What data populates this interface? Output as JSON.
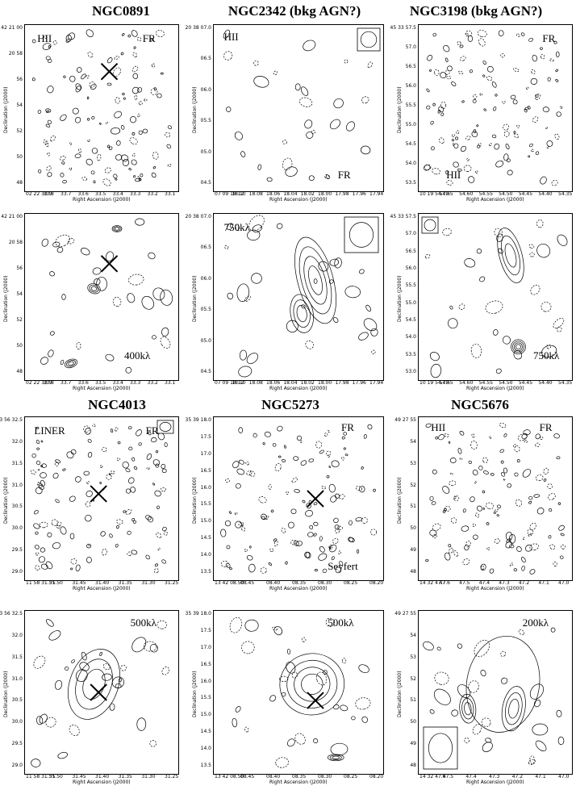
{
  "figure": {
    "titles": [
      {
        "id": "t1",
        "text": "NGC0891"
      },
      {
        "id": "t2",
        "text": "NGC2342 (bkg AGN?)"
      },
      {
        "id": "t3",
        "text": "NGC3198 (bkg AGN?)"
      },
      {
        "id": "t4",
        "text": "NGC4013"
      },
      {
        "id": "t5",
        "text": "NGC5273"
      },
      {
        "id": "t6",
        "text": "NGC5676"
      }
    ],
    "axis_labels": {
      "x": "Right Ascension (J2000)",
      "y": "Declination (J2000)"
    },
    "panels": [
      {
        "id": "p1",
        "labels": [
          "HII",
          "FR"
        ],
        "yticks": [
          "42 21 00",
          "20 58",
          "56",
          "54",
          "52",
          "50",
          "48"
        ],
        "xticks": [
          "02 22 33.9",
          "33.8",
          "33.7",
          "33.6",
          "33.5",
          "33.4",
          "33.3",
          "33.2",
          "33.1"
        ],
        "cross": true
      },
      {
        "id": "p2",
        "labels": [
          "HII",
          "FR"
        ],
        "yticks": [
          "20 38 07.0",
          "06.5",
          "06.0",
          "05.5",
          "05.0",
          "04.5"
        ],
        "xticks": [
          "07 09 18.12",
          "18.10",
          "18.08",
          "18.06",
          "18.04",
          "18.02",
          "18.00",
          "17.98",
          "17.96",
          "17.94"
        ],
        "cross": false
      },
      {
        "id": "p3",
        "labels": [
          "FR",
          "HII"
        ],
        "yticks": [
          "45 33 57.5",
          "57.0",
          "56.5",
          "56.0",
          "55.5",
          "55.0",
          "54.5",
          "54.0",
          "53.5"
        ],
        "xticks": [
          "10 19 54.70",
          "54.65",
          "54.60",
          "54.55",
          "54.50",
          "54.45",
          "54.40",
          "54.35"
        ],
        "cross": false
      },
      {
        "id": "p4",
        "labels": [
          "400kλ"
        ],
        "yticks": [
          "42 21 00",
          "20 58",
          "56",
          "54",
          "52",
          "50",
          "48"
        ],
        "xticks": [
          "02 22 33.9",
          "33.8",
          "33.7",
          "33.6",
          "33.5",
          "33.4",
          "33.3",
          "33.2",
          "33.1"
        ],
        "cross": true
      },
      {
        "id": "p5",
        "labels": [
          "750kλ"
        ],
        "yticks": [
          "20 38 07.0",
          "06.5",
          "06.0",
          "05.5",
          "05.0",
          "04.5"
        ],
        "xticks": [
          "07 09 18.12",
          "18.10",
          "18.08",
          "18.06",
          "18.04",
          "18.02",
          "18.00",
          "17.98",
          "17.96",
          "17.94"
        ],
        "cross": false
      },
      {
        "id": "p6",
        "labels": [
          "750kλ"
        ],
        "yticks": [
          "45 33 57.5",
          "57.0",
          "56.5",
          "56.0",
          "55.5",
          "55.0",
          "54.5",
          "54.0",
          "53.5",
          "53.0"
        ],
        "xticks": [
          "10 19 54.70",
          "54.65",
          "54.60",
          "54.55",
          "54.50",
          "54.45",
          "54.40",
          "54.35"
        ],
        "cross": false
      },
      {
        "id": "p7",
        "labels": [
          "LINER",
          "FR"
        ],
        "yticks": [
          "43 56 32.5",
          "32.0",
          "31.5",
          "31.0",
          "30.5",
          "30.0",
          "29.5",
          "29.0"
        ],
        "xticks": [
          "11 58 31.55",
          "31.50",
          "31.45",
          "31.40",
          "31.35",
          "31.30",
          "31.25"
        ],
        "cross": true
      },
      {
        "id": "p8",
        "labels": [
          "FR",
          "Seyfert"
        ],
        "yticks": [
          "35 39 18.0",
          "17.5",
          "17.0",
          "16.5",
          "16.0",
          "15.5",
          "15.0",
          "14.5",
          "14.0",
          "13.5"
        ],
        "xticks": [
          "13 42 08.50",
          "08.45",
          "08.40",
          "08.35",
          "08.30",
          "08.25",
          "08.20"
        ],
        "cross": true
      },
      {
        "id": "p9",
        "labels": [
          "HII",
          "FR"
        ],
        "yticks": [
          "49 27 55",
          "54",
          "53",
          "52",
          "51",
          "50",
          "49",
          "48"
        ],
        "xticks": [
          "14 32 47.7",
          "47.6",
          "47.5",
          "47.4",
          "47.3",
          "47.2",
          "47.1",
          "47.0"
        ],
        "cross": false
      },
      {
        "id": "p10",
        "labels": [
          "500kλ"
        ],
        "yticks": [
          "43 56 32.5",
          "32.0",
          "31.5",
          "31.0",
          "30.5",
          "30.0",
          "29.5",
          "29.0"
        ],
        "xticks": [
          "11 58 31.55",
          "31.50",
          "31.45",
          "31.40",
          "31.35",
          "31.30",
          "31.25"
        ],
        "cross": true
      },
      {
        "id": "p11",
        "labels": [
          "500kλ"
        ],
        "yticks": [
          "35 39 18.0",
          "17.5",
          "17.0",
          "16.5",
          "16.0",
          "15.5",
          "15.0",
          "14.5",
          "14.0",
          "13.5"
        ],
        "xticks": [
          "13 42 08.50",
          "08.45",
          "08.40",
          "08.35",
          "08.30",
          "08.25",
          "08.20"
        ],
        "cross": true
      },
      {
        "id": "p12",
        "labels": [
          "200kλ"
        ],
        "yticks": [
          "49 27 55",
          "54",
          "53",
          "52",
          "51",
          "50",
          "49",
          "48"
        ],
        "xticks": [
          "14 32 47.6",
          "47.5",
          "47.4",
          "47.3",
          "47.2",
          "47.1",
          "47.0"
        ],
        "cross": false
      }
    ]
  }
}
